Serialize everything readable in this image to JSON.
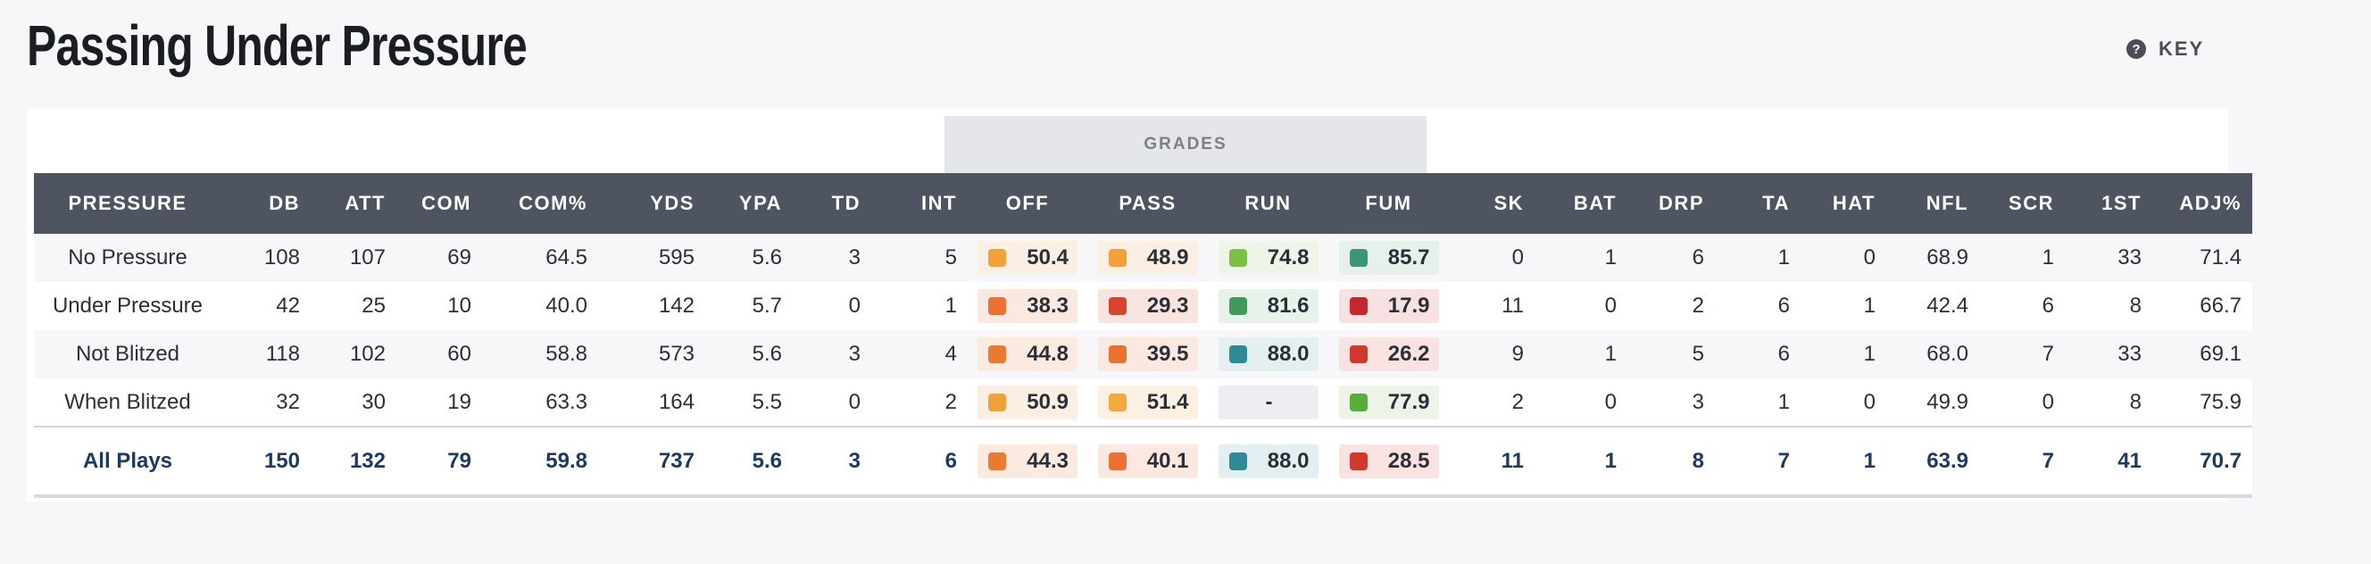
{
  "title": "Passing Under Pressure",
  "key_label": "KEY",
  "grades_label": "GRADES",
  "headers": [
    "PRESSURE",
    "DB",
    "ATT",
    "COM",
    "COM%",
    "YDS",
    "YPA",
    "TD",
    "INT",
    "OFF",
    "PASS",
    "RUN",
    "FUM",
    "SK",
    "BAT",
    "DRP",
    "TA",
    "HAT",
    "NFL",
    "SCR",
    "1ST",
    "ADJ%"
  ],
  "rows": [
    {
      "pressure": "No Pressure",
      "db": "108",
      "att": "107",
      "com": "69",
      "com_pct": "64.5",
      "yds": "595",
      "ypa": "5.6",
      "td": "3",
      "int": "5",
      "off": {
        "value": "50.4",
        "color": "#f0a23a",
        "bg": "#fbeee2"
      },
      "pass": {
        "value": "48.9",
        "color": "#f0a23a",
        "bg": "#fbeee2"
      },
      "run": {
        "value": "74.8",
        "color": "#7cbf45",
        "bg": "#eef5e8"
      },
      "fum": {
        "value": "85.7",
        "color": "#3d9577",
        "bg": "#e6f1ec"
      },
      "sk": "0",
      "bat": "1",
      "drp": "6",
      "ta": "1",
      "hat": "0",
      "nfl": "68.9",
      "scr": "1",
      "first": "33",
      "adj_pct": "71.4"
    },
    {
      "pressure": "Under Pressure",
      "db": "42",
      "att": "25",
      "com": "10",
      "com_pct": "40.0",
      "yds": "142",
      "ypa": "5.7",
      "td": "0",
      "int": "1",
      "off": {
        "value": "38.3",
        "color": "#ea7033",
        "bg": "#fbe9e1"
      },
      "pass": {
        "value": "29.3",
        "color": "#d8452e",
        "bg": "#fae4df"
      },
      "run": {
        "value": "81.6",
        "color": "#3f9a5c",
        "bg": "#e6f2ea"
      },
      "fum": {
        "value": "17.9",
        "color": "#c4272e",
        "bg": "#f8e1e1"
      },
      "sk": "11",
      "bat": "0",
      "drp": "2",
      "ta": "6",
      "hat": "1",
      "nfl": "42.4",
      "scr": "6",
      "first": "8",
      "adj_pct": "66.7"
    },
    {
      "pressure": "Not Blitzed",
      "db": "118",
      "att": "102",
      "com": "60",
      "com_pct": "58.8",
      "yds": "573",
      "ypa": "5.6",
      "td": "3",
      "int": "4",
      "off": {
        "value": "44.8",
        "color": "#ea7a30",
        "bg": "#fbeae0"
      },
      "pass": {
        "value": "39.5",
        "color": "#ea7033",
        "bg": "#fbe9e1"
      },
      "run": {
        "value": "88.0",
        "color": "#2f8a97",
        "bg": "#e3eff1"
      },
      "fum": {
        "value": "26.2",
        "color": "#d03a2e",
        "bg": "#f9e2df"
      },
      "sk": "9",
      "bat": "1",
      "drp": "5",
      "ta": "6",
      "hat": "1",
      "nfl": "68.0",
      "scr": "7",
      "first": "33",
      "adj_pct": "69.1"
    },
    {
      "pressure": "When Blitzed",
      "db": "32",
      "att": "30",
      "com": "19",
      "com_pct": "63.3",
      "yds": "164",
      "ypa": "5.5",
      "td": "0",
      "int": "2",
      "off": {
        "value": "50.9",
        "color": "#f0a23a",
        "bg": "#fbeee2"
      },
      "pass": {
        "value": "51.4",
        "color": "#f2a93d",
        "bg": "#fcf0e3"
      },
      "run": {
        "value": "-",
        "color": "",
        "bg": "#eceef1"
      },
      "fum": {
        "value": "77.9",
        "color": "#59ab3e",
        "bg": "#ebf4e6"
      },
      "sk": "2",
      "bat": "0",
      "drp": "3",
      "ta": "1",
      "hat": "0",
      "nfl": "49.9",
      "scr": "0",
      "first": "8",
      "adj_pct": "75.9"
    }
  ],
  "total": {
    "pressure": "All Plays",
    "db": "150",
    "att": "132",
    "com": "79",
    "com_pct": "59.8",
    "yds": "737",
    "ypa": "5.6",
    "td": "3",
    "int": "6",
    "off": {
      "value": "44.3",
      "color": "#ea7a30",
      "bg": "#fbeae0"
    },
    "pass": {
      "value": "40.1",
      "color": "#ea7033",
      "bg": "#fbe9e1"
    },
    "run": {
      "value": "88.0",
      "color": "#2f8a97",
      "bg": "#e3eff1"
    },
    "fum": {
      "value": "28.5",
      "color": "#d03a2e",
      "bg": "#f9e2df"
    },
    "sk": "11",
    "bat": "1",
    "drp": "8",
    "ta": "7",
    "hat": "1",
    "nfl": "63.9",
    "scr": "7",
    "first": "41",
    "adj_pct": "70.7"
  }
}
